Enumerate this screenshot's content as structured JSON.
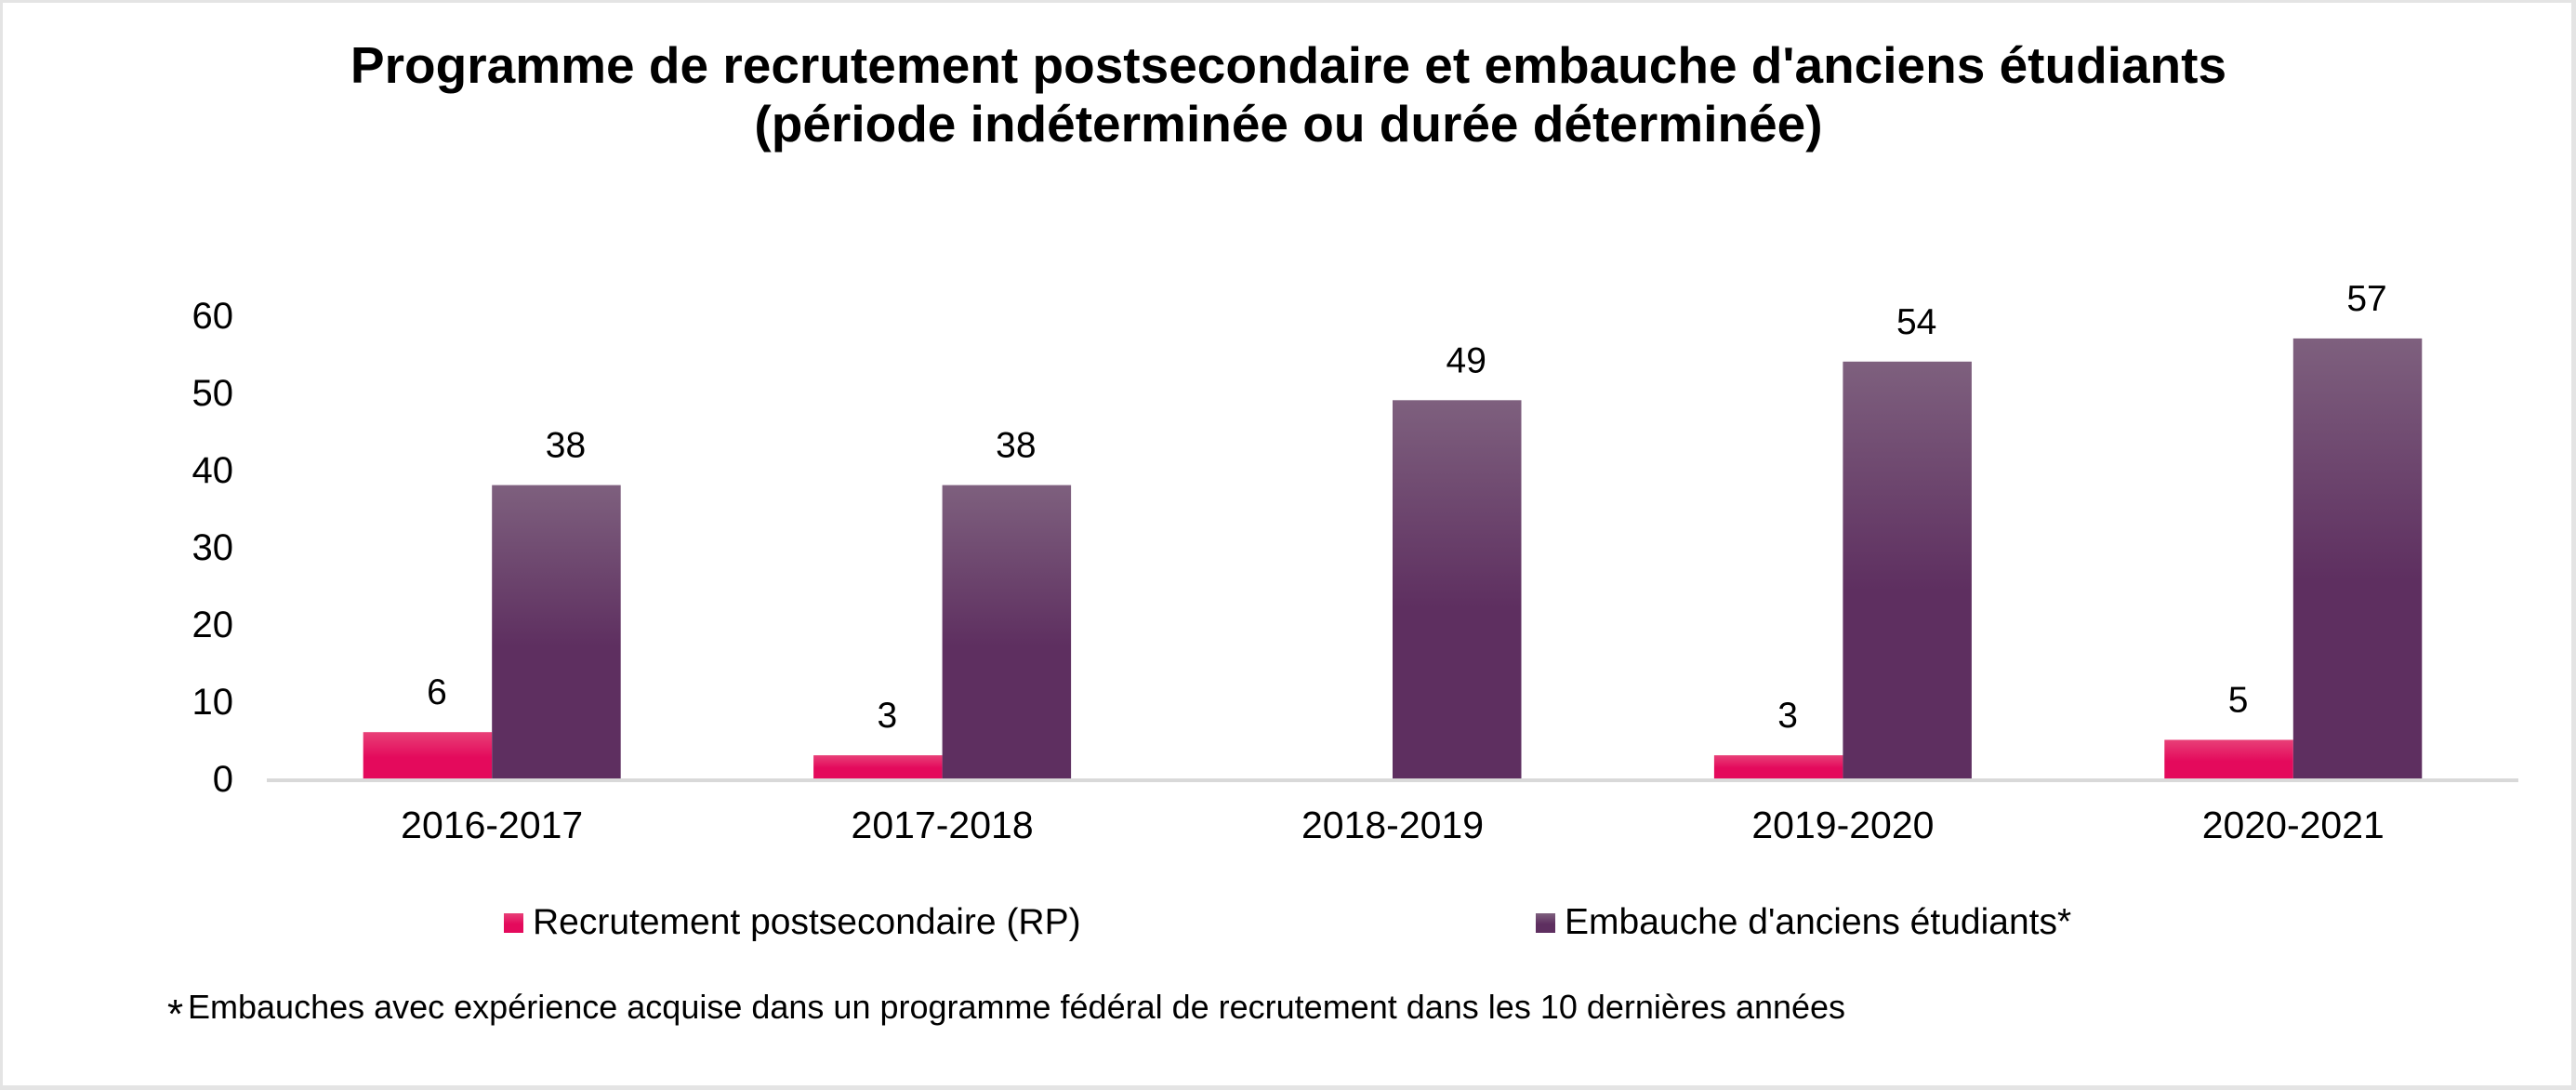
{
  "chart_data": {
    "type": "bar",
    "title": "Programme de recrutement postsecondaire et embauche d'anciens étudiants",
    "subtitle": "(période indéterminée ou durée déterminée)",
    "categories": [
      "2016-2017",
      "2017-2018",
      "2018-2019",
      "2019-2020",
      "2020-2021"
    ],
    "series": [
      {
        "name": "Recrutement postsecondaire (RP)",
        "values": [
          6,
          3,
          null,
          3,
          5
        ],
        "color_top": "#e84078",
        "color_bottom": "#e40a5c"
      },
      {
        "name": "Embauche d'anciens étudiants*",
        "values": [
          38,
          38,
          49,
          54,
          57
        ],
        "color_top": "#7e607e",
        "color_bottom": "#5e2f60"
      }
    ],
    "xlabel": "",
    "ylabel": "",
    "ylim": [
      0,
      60
    ],
    "yticks": [
      0,
      10,
      20,
      30,
      40,
      50,
      60
    ],
    "grid": false,
    "legend_position": "bottom",
    "data_labels": true,
    "footnote_marker": "*",
    "footnote": "Embauches avec expérience acquise dans un programme fédéral de recrutement dans les 10 dernières années"
  }
}
